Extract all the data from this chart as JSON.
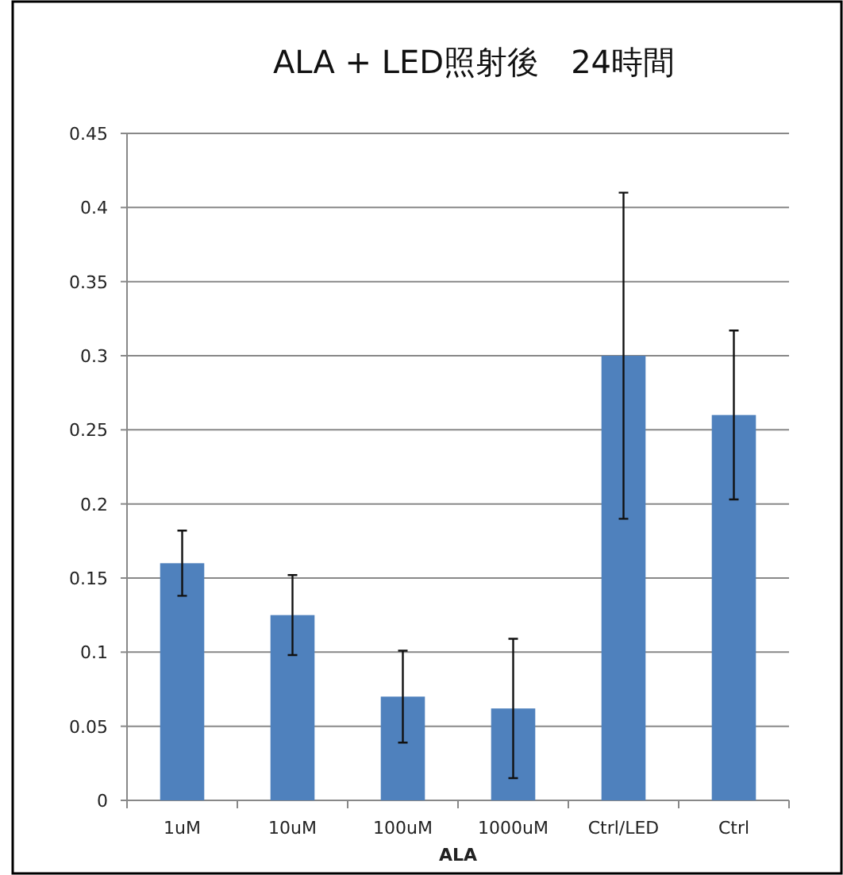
{
  "chart_data": {
    "type": "bar",
    "title": "ALA + LED照射後　24時間",
    "xlabel": "ALA",
    "categories": [
      "1uM",
      "10uM",
      "100uM",
      "1000uM",
      "Ctrl/LED",
      "Ctrl"
    ],
    "values": [
      0.16,
      0.125,
      0.07,
      0.062,
      0.3,
      0.26
    ],
    "errors": [
      0.022,
      0.027,
      0.031,
      0.047,
      0.11,
      0.057
    ],
    "color": "#4f81bd",
    "ylim": [
      0,
      0.45
    ],
    "yticks": [
      0,
      0.05,
      0.1,
      0.15,
      0.2,
      0.25,
      0.3,
      0.35,
      0.4,
      0.45
    ],
    "grid": "y"
  }
}
